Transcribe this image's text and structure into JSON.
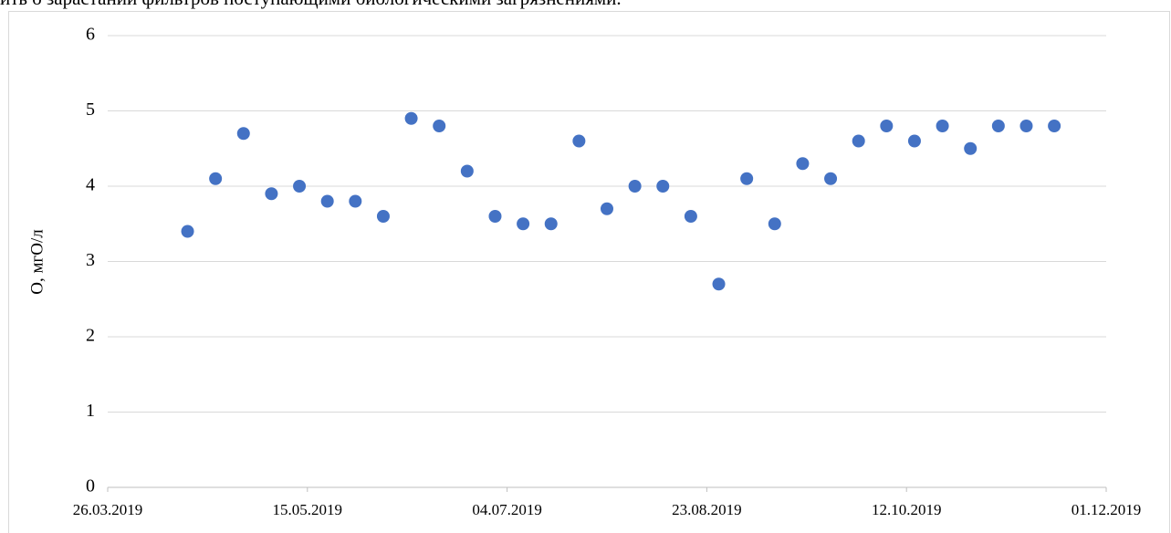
{
  "document_text": "ить о зарастании фильтров поступающими биологическими загрязнениями.",
  "chart_data": {
    "type": "scatter",
    "y_label": "O, мгO/л",
    "x": [
      "2019-04-15",
      "2019-04-22",
      "2019-04-29",
      "2019-05-06",
      "2019-05-13",
      "2019-05-20",
      "2019-05-27",
      "2019-06-03",
      "2019-06-10",
      "2019-06-17",
      "2019-06-24",
      "2019-07-01",
      "2019-07-08",
      "2019-07-15",
      "2019-07-22",
      "2019-07-29",
      "2019-08-05",
      "2019-08-12",
      "2019-08-19",
      "2019-08-26",
      "2019-09-02",
      "2019-09-09",
      "2019-09-16",
      "2019-09-23",
      "2019-09-30",
      "2019-10-07",
      "2019-10-14",
      "2019-10-21",
      "2019-10-28",
      "2019-11-04",
      "2019-11-11",
      "2019-11-18"
    ],
    "values": [
      3.4,
      4.1,
      4.7,
      3.9,
      4.0,
      3.8,
      3.8,
      3.6,
      4.9,
      4.8,
      4.2,
      3.6,
      3.5,
      3.5,
      4.6,
      3.7,
      4.0,
      4.0,
      3.6,
      2.7,
      4.1,
      3.5,
      4.3,
      4.1,
      4.6,
      4.8,
      4.6,
      4.8,
      4.5,
      4.8,
      4.8,
      4.8
    ],
    "color": "#4472c4",
    "xlim": [
      "2019-03-26",
      "2019-12-01"
    ],
    "xticks": [
      {
        "value": "2019-03-26",
        "label": "26.03.2019"
      },
      {
        "value": "2019-05-15",
        "label": "15.05.2019"
      },
      {
        "value": "2019-07-04",
        "label": "04.07.2019"
      },
      {
        "value": "2019-08-23",
        "label": "23.08.2019"
      },
      {
        "value": "2019-10-12",
        "label": "12.10.2019"
      },
      {
        "value": "2019-12-01",
        "label": "01.12.2019"
      }
    ],
    "ylim": [
      0,
      6
    ],
    "yticks": [
      0,
      1,
      2,
      3,
      4,
      5,
      6
    ],
    "grid": true
  }
}
